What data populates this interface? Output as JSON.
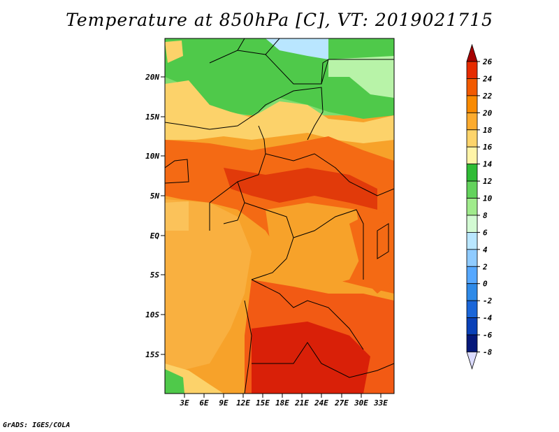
{
  "title": "Temperature at 850hPa [C], VT: 2019021715",
  "footer": "GrADS: IGES/COLA",
  "map": {
    "lat_labels": [
      "20N",
      "15N",
      "10N",
      "5N",
      "EQ",
      "5S",
      "10S",
      "15S"
    ],
    "lon_labels": [
      "3E",
      "6E",
      "9E",
      "12E",
      "15E",
      "18E",
      "21E",
      "24E",
      "27E",
      "30E",
      "33E"
    ]
  },
  "colorbar": {
    "levels": [
      "26",
      "24",
      "22",
      "20",
      "18",
      "16",
      "14",
      "12",
      "10",
      "8",
      "6",
      "4",
      "2",
      "0",
      "-2",
      "-4",
      "-6",
      "-8"
    ],
    "colors": [
      "#a50000",
      "#e62b00",
      "#f25a00",
      "#f98a00",
      "#fcab2e",
      "#fdd46b",
      "#fff4a8",
      "#2fbc35",
      "#63d35c",
      "#a0eb8c",
      "#d3fad3",
      "#b9e6ff",
      "#8fcbff",
      "#56a8ff",
      "#2e8ae8",
      "#1a66d9",
      "#0a41b8",
      "#05187a",
      "#dcdcff"
    ]
  }
}
